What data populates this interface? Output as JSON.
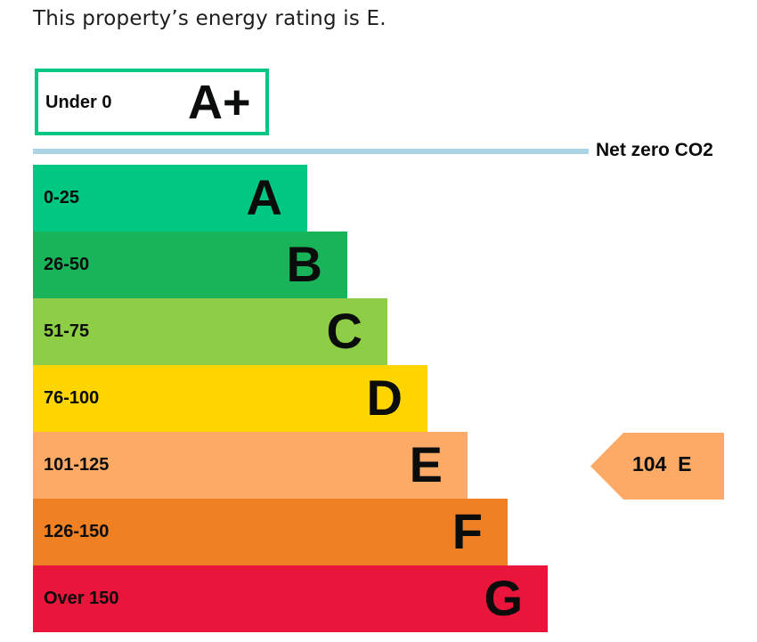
{
  "headline": "This property’s energy rating is E.",
  "chart_data": {
    "type": "bar",
    "title": "This property’s energy rating is E.",
    "top_band": {
      "range": "Under 0",
      "letter": "A+",
      "color": "#00c781"
    },
    "net_zero_label": "Net zero CO2",
    "bands": [
      {
        "range": "0-25",
        "letter": "A",
        "color": "#00c781"
      },
      {
        "range": "26-50",
        "letter": "B",
        "color": "#19b459"
      },
      {
        "range": "51-75",
        "letter": "C",
        "color": "#8dce46"
      },
      {
        "range": "76-100",
        "letter": "D",
        "color": "#ffd500"
      },
      {
        "range": "101-125",
        "letter": "E",
        "color": "#fcaa65"
      },
      {
        "range": "126-150",
        "letter": "F",
        "color": "#ef8023"
      },
      {
        "range": "Over 150",
        "letter": "G",
        "color": "#e9153b"
      }
    ],
    "current": {
      "value": "104",
      "letter": "E",
      "label": "104  E",
      "color": "#fcaa65"
    }
  }
}
